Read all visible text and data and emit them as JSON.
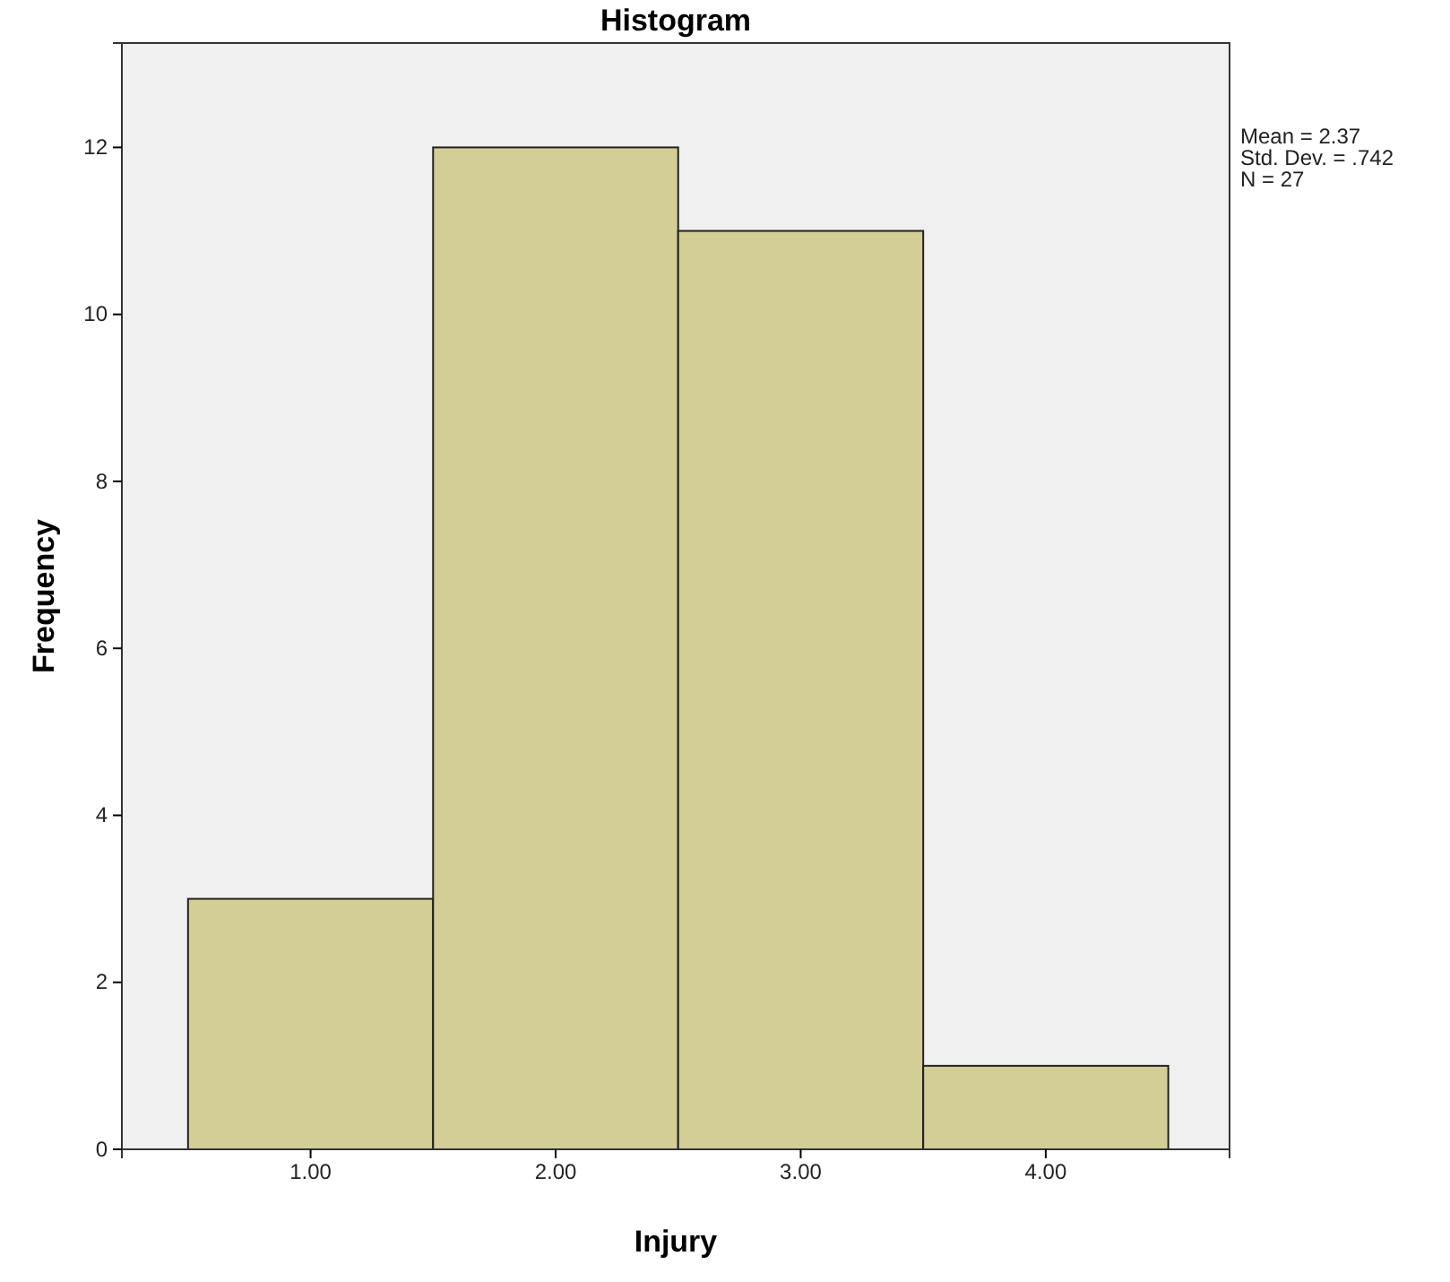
{
  "chart_data": {
    "type": "histogram",
    "title": "Histogram",
    "xlabel": "Injury",
    "ylabel": "Frequency",
    "bins": [
      0.5,
      1.5,
      2.5,
      3.5,
      4.5
    ],
    "values": [
      3,
      12,
      11,
      1
    ],
    "color": "#d3ce96",
    "xlim": [
      0.23,
      4.75
    ],
    "xticks": [
      {
        "value": 1,
        "label": "1.00"
      },
      {
        "value": 2,
        "label": "2.00"
      },
      {
        "value": 3,
        "label": "3.00"
      },
      {
        "value": 4,
        "label": "4.00"
      }
    ],
    "ylim": [
      0,
      13.25
    ],
    "yticks": [
      0,
      2,
      4,
      6,
      8,
      10,
      12
    ],
    "annotations": [
      "Mean = 2.37",
      "Std. Dev. = .742",
      "N = 27"
    ]
  }
}
